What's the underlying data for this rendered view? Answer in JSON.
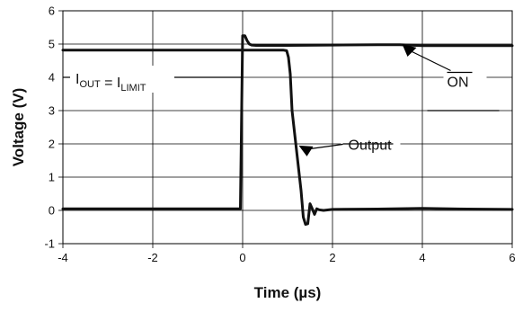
{
  "chart_data": {
    "type": "line",
    "title": "",
    "xlabel": "Time (µs)",
    "ylabel": "Voltage (V)",
    "xlim": [
      -4,
      6
    ],
    "ylim": [
      -1,
      6
    ],
    "grid": true,
    "xticks": [
      "-4",
      "-2",
      "0",
      "2",
      "4",
      "6"
    ],
    "yticks": [
      "-1",
      "0",
      "1",
      "2",
      "3",
      "4",
      "5",
      "6"
    ],
    "series": [
      {
        "name": "ON",
        "color": "#111111",
        "x": [
          -4,
          -0.05,
          0.0,
          0.05,
          0.1,
          0.15,
          0.2,
          0.3,
          0.5,
          1.0,
          2.0,
          3.0,
          3.5,
          4.0,
          5.0,
          6.0
        ],
        "y": [
          0.05,
          0.05,
          5.25,
          5.25,
          5.1,
          5.0,
          4.97,
          4.96,
          4.96,
          4.96,
          4.97,
          4.98,
          4.98,
          4.95,
          4.95,
          4.95
        ]
      },
      {
        "name": "Output",
        "color": "#111111",
        "x": [
          -4,
          0.0,
          0.5,
          0.9,
          0.98,
          1.02,
          1.06,
          1.1,
          1.2,
          1.3,
          1.35,
          1.4,
          1.45,
          1.5,
          1.55,
          1.6,
          1.65,
          1.7,
          1.8,
          2.0,
          3.0,
          4.0,
          5.0,
          6.0
        ],
        "y": [
          4.82,
          4.82,
          4.82,
          4.82,
          4.8,
          4.6,
          4.1,
          3.0,
          1.8,
          0.6,
          -0.2,
          -0.42,
          -0.4,
          0.2,
          0.05,
          -0.12,
          0.05,
          0.02,
          0.0,
          0.03,
          0.04,
          0.06,
          0.04,
          0.03
        ]
      }
    ],
    "annotations": {
      "limit": {
        "prefix_i1": "I",
        "sub_out": "OUT",
        "equals": " = ",
        "prefix_i2": "I",
        "sub_limit": "LIMIT",
        "x": -2.2,
        "y": 4.0
      },
      "on": {
        "text": "ON",
        "overline": true,
        "text_x": 4.55,
        "text_y": 3.5,
        "arrow_to_x": 3.55,
        "arrow_to_y": 5.0
      },
      "output": {
        "text": "Output",
        "text_x": 2.35,
        "text_y": 1.5,
        "arrow_to_x": 1.25,
        "arrow_to_y": 1.95
      }
    }
  }
}
